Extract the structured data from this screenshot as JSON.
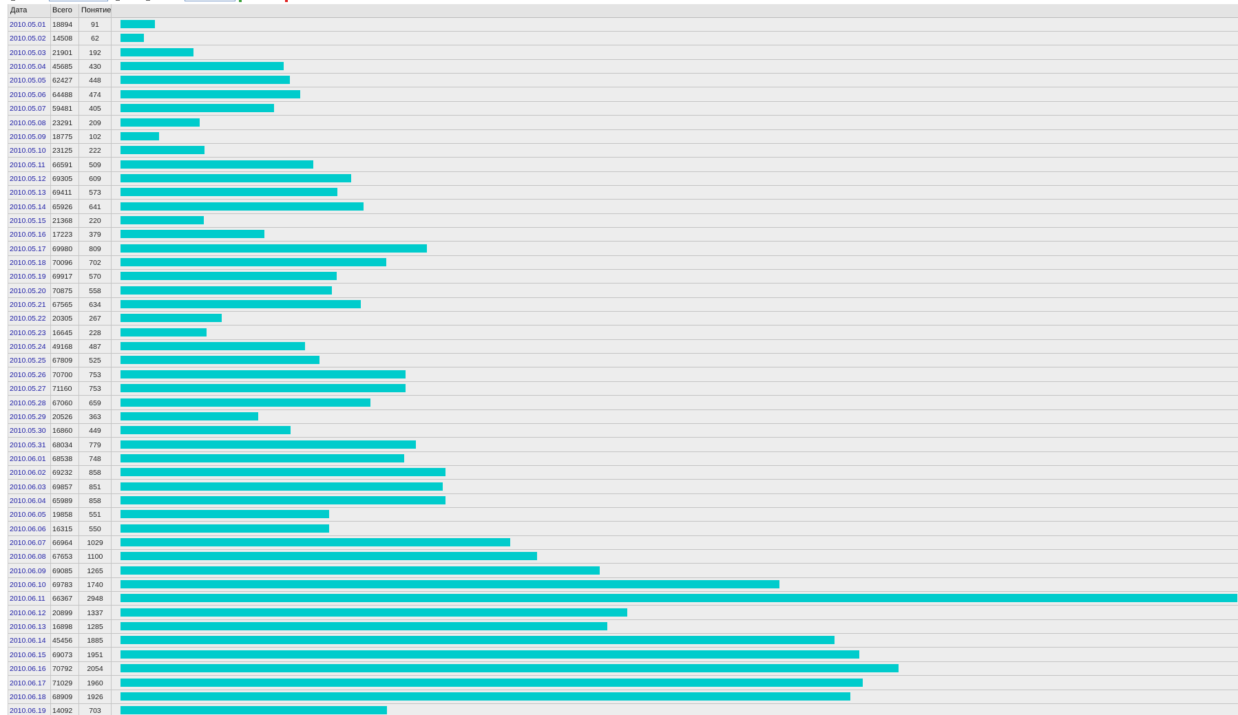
{
  "colors": {
    "bar": "#00cccc",
    "link": "#1a1aa6",
    "background": "#ededed"
  },
  "table": {
    "headers": {
      "date": "Дата",
      "total": "Всего",
      "unique": "Понятие"
    },
    "max_unique": 2948,
    "rows": [
      {
        "date": "2010.05.01",
        "total": "18894",
        "unique": 91
      },
      {
        "date": "2010.05.02",
        "total": "14508",
        "unique": 62
      },
      {
        "date": "2010.05.03",
        "total": "21901",
        "unique": 192
      },
      {
        "date": "2010.05.04",
        "total": "45685",
        "unique": 430
      },
      {
        "date": "2010.05.05",
        "total": "62427",
        "unique": 448
      },
      {
        "date": "2010.05.06",
        "total": "64488",
        "unique": 474
      },
      {
        "date": "2010.05.07",
        "total": "59481",
        "unique": 405
      },
      {
        "date": "2010.05.08",
        "total": "23291",
        "unique": 209
      },
      {
        "date": "2010.05.09",
        "total": "18775",
        "unique": 102
      },
      {
        "date": "2010.05.10",
        "total": "23125",
        "unique": 222
      },
      {
        "date": "2010.05.11",
        "total": "66591",
        "unique": 509
      },
      {
        "date": "2010.05.12",
        "total": "69305",
        "unique": 609
      },
      {
        "date": "2010.05.13",
        "total": "69411",
        "unique": 573
      },
      {
        "date": "2010.05.14",
        "total": "65926",
        "unique": 641
      },
      {
        "date": "2010.05.15",
        "total": "21368",
        "unique": 220
      },
      {
        "date": "2010.05.16",
        "total": "17223",
        "unique": 379
      },
      {
        "date": "2010.05.17",
        "total": "69980",
        "unique": 809
      },
      {
        "date": "2010.05.18",
        "total": "70096",
        "unique": 702
      },
      {
        "date": "2010.05.19",
        "total": "69917",
        "unique": 570
      },
      {
        "date": "2010.05.20",
        "total": "70875",
        "unique": 558
      },
      {
        "date": "2010.05.21",
        "total": "67565",
        "unique": 634
      },
      {
        "date": "2010.05.22",
        "total": "20305",
        "unique": 267
      },
      {
        "date": "2010.05.23",
        "total": "16645",
        "unique": 228
      },
      {
        "date": "2010.05.24",
        "total": "49168",
        "unique": 487
      },
      {
        "date": "2010.05.25",
        "total": "67809",
        "unique": 525
      },
      {
        "date": "2010.05.26",
        "total": "70700",
        "unique": 753
      },
      {
        "date": "2010.05.27",
        "total": "71160",
        "unique": 753
      },
      {
        "date": "2010.05.28",
        "total": "67060",
        "unique": 659
      },
      {
        "date": "2010.05.29",
        "total": "20526",
        "unique": 363
      },
      {
        "date": "2010.05.30",
        "total": "16860",
        "unique": 449
      },
      {
        "date": "2010.05.31",
        "total": "68034",
        "unique": 779
      },
      {
        "date": "2010.06.01",
        "total": "68538",
        "unique": 748
      },
      {
        "date": "2010.06.02",
        "total": "69232",
        "unique": 858
      },
      {
        "date": "2010.06.03",
        "total": "69857",
        "unique": 851
      },
      {
        "date": "2010.06.04",
        "total": "65989",
        "unique": 858
      },
      {
        "date": "2010.06.05",
        "total": "19858",
        "unique": 551
      },
      {
        "date": "2010.06.06",
        "total": "16315",
        "unique": 550
      },
      {
        "date": "2010.06.07",
        "total": "66964",
        "unique": 1029
      },
      {
        "date": "2010.06.08",
        "total": "67653",
        "unique": 1100
      },
      {
        "date": "2010.06.09",
        "total": "69085",
        "unique": 1265
      },
      {
        "date": "2010.06.10",
        "total": "69783",
        "unique": 1740
      },
      {
        "date": "2010.06.11",
        "total": "66367",
        "unique": 2948
      },
      {
        "date": "2010.06.12",
        "total": "20899",
        "unique": 1337
      },
      {
        "date": "2010.06.13",
        "total": "16898",
        "unique": 1285
      },
      {
        "date": "2010.06.14",
        "total": "45456",
        "unique": 1885
      },
      {
        "date": "2010.06.15",
        "total": "69073",
        "unique": 1951
      },
      {
        "date": "2010.06.16",
        "total": "70792",
        "unique": 2054
      },
      {
        "date": "2010.06.17",
        "total": "71029",
        "unique": 1960
      },
      {
        "date": "2010.06.18",
        "total": "68909",
        "unique": 1926
      },
      {
        "date": "2010.06.19",
        "total": "14092",
        "unique": 703
      }
    ]
  }
}
